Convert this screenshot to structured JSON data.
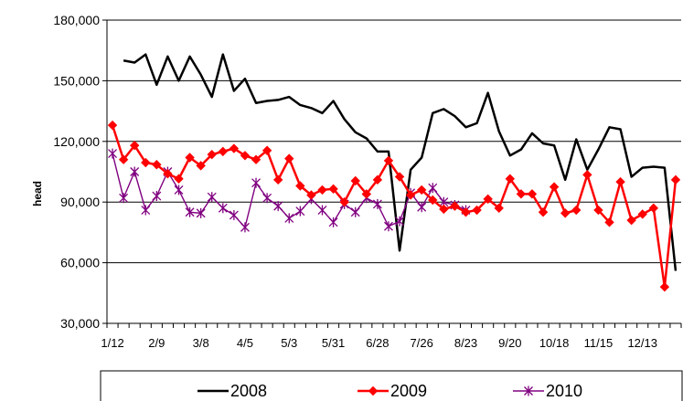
{
  "chart_data": {
    "type": "line",
    "ylabel": "head",
    "ylim": [
      30000,
      180000
    ],
    "y_ticks": [
      "30,000",
      "60,000",
      "90,000",
      "120,000",
      "150,000",
      "180,000"
    ],
    "y_tick_values": [
      30000,
      60000,
      90000,
      120000,
      150000,
      180000
    ],
    "x_ticks": [
      "1/12",
      "2/9",
      "3/8",
      "4/5",
      "5/3",
      "5/31",
      "6/28",
      "7/26",
      "8/23",
      "9/20",
      "10/18",
      "11/15",
      "12/13"
    ],
    "grid": "horizontal",
    "legend_position": "bottom",
    "series": [
      {
        "name": "2008",
        "color": "#000000",
        "marker": "none",
        "values": [
          160000,
          159000,
          163000,
          148000,
          162000,
          150000,
          162000,
          153000,
          142000,
          163000,
          145000,
          151000,
          139000,
          140000,
          140500,
          142000,
          138000,
          136500,
          134000,
          140000,
          131000,
          124500,
          121500,
          115000,
          115000,
          66000,
          106000,
          112000,
          134000,
          136000,
          132500,
          127000,
          129000,
          144000,
          125000,
          113000,
          116000,
          124000,
          119000,
          118000,
          101000,
          121000,
          106000,
          116000,
          127000,
          126000,
          102500,
          107000,
          107500,
          107000,
          56000
        ]
      },
      {
        "name": "2009",
        "color": "#ff0000",
        "marker": "diamond",
        "values": [
          128000,
          111000,
          118000,
          109500,
          108500,
          104000,
          101500,
          112000,
          108000,
          113500,
          115000,
          116500,
          113000,
          111000,
          115500,
          101000,
          111500,
          98000,
          93500,
          96000,
          96500,
          90000,
          100500,
          94000,
          101000,
          110500,
          102500,
          93500,
          96000,
          91000,
          86500,
          88000,
          85000,
          86000,
          91500,
          87000,
          101500,
          94000,
          94000,
          85000,
          97500,
          84500,
          86000,
          103500,
          86000,
          80000,
          100000,
          81000,
          84000,
          87000,
          48000,
          101000
        ]
      },
      {
        "name": "2010",
        "color": "#800080",
        "marker": "star",
        "values": [
          114000,
          92000,
          105000,
          86000,
          93000,
          105000,
          96000,
          85000,
          84500,
          92500,
          87000,
          83500,
          77500,
          99500,
          92000,
          88000,
          82000,
          85500,
          91500,
          86000,
          80000,
          89000,
          85000,
          92000,
          89000,
          78000,
          80500,
          94500,
          87500,
          97000,
          90000,
          88500,
          86000
        ]
      }
    ]
  }
}
